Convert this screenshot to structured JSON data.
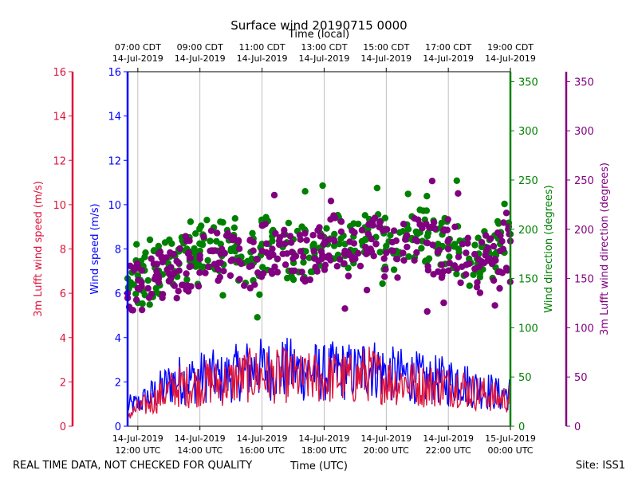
{
  "chart_data": {
    "type": "line+scatter",
    "title": "Surface wind 20190715 0000",
    "top_axis_label": "Time (local)",
    "xlabel": "Time (UTC)",
    "x_range_utc": [
      "2019-07-14 11:40",
      "2019-07-15 00:00"
    ],
    "top_ticks": [
      {
        "line1": "07:00 CDT",
        "line2": "14-Jul-2019"
      },
      {
        "line1": "09:00 CDT",
        "line2": "14-Jul-2019"
      },
      {
        "line1": "11:00 CDT",
        "line2": "14-Jul-2019"
      },
      {
        "line1": "13:00 CDT",
        "line2": "14-Jul-2019"
      },
      {
        "line1": "15:00 CDT",
        "line2": "14-Jul-2019"
      },
      {
        "line1": "17:00 CDT",
        "line2": "14-Jul-2019"
      },
      {
        "line1": "19:00 CDT",
        "line2": "14-Jul-2019"
      }
    ],
    "bottom_ticks": [
      {
        "line1": "14-Jul-2019",
        "line2": "12:00 UTC"
      },
      {
        "line1": "14-Jul-2019",
        "line2": "14:00 UTC"
      },
      {
        "line1": "14-Jul-2019",
        "line2": "16:00 UTC"
      },
      {
        "line1": "14-Jul-2019",
        "line2": "18:00 UTC"
      },
      {
        "line1": "14-Jul-2019",
        "line2": "20:00 UTC"
      },
      {
        "line1": "14-Jul-2019",
        "line2": "22:00 UTC"
      },
      {
        "line1": "15-Jul-2019",
        "line2": "00:00 UTC"
      }
    ],
    "axes": {
      "wind_speed": {
        "label": "Wind speed (m/s)",
        "color": "#0000ff",
        "ylim": [
          0,
          16
        ],
        "ticks": [
          0,
          2,
          4,
          6,
          8,
          10,
          12,
          14,
          16
        ]
      },
      "lufft_speed": {
        "label": "3m Lufft wind speed (m/s)",
        "color": "#dc143c",
        "ylim": [
          0,
          16
        ],
        "ticks": [
          0,
          2,
          4,
          6,
          8,
          10,
          12,
          14,
          16
        ]
      },
      "wind_direction": {
        "label": "Wind direction (degrees)",
        "color": "#008000",
        "ylim": [
          0,
          360
        ],
        "ticks": [
          0,
          50,
          100,
          150,
          200,
          250,
          300,
          350
        ]
      },
      "lufft_direction": {
        "label": "3m Lufft wind direction (degrees)",
        "color": "#800080",
        "ylim": [
          0,
          360
        ],
        "ticks": [
          0,
          50,
          100,
          150,
          200,
          250,
          300,
          350
        ]
      }
    },
    "series": [
      {
        "name": "Wind speed",
        "kind": "line",
        "color": "#0000ff",
        "axis": "wind_speed",
        "x_hours_utc": [
          11.67,
          12.0,
          12.33,
          12.67,
          13.0,
          13.33,
          13.67,
          14.0,
          14.33,
          14.67,
          15.0,
          15.33,
          15.67,
          16.0,
          16.33,
          16.67,
          17.0,
          17.33,
          17.67,
          18.0,
          18.33,
          18.67,
          19.0,
          19.33,
          19.67,
          20.0,
          20.33,
          20.67,
          21.0,
          21.33,
          21.67,
          22.0,
          22.33,
          22.67,
          23.0,
          23.33,
          23.67,
          24.0
        ],
        "values": [
          0.9,
          1.0,
          1.3,
          1.6,
          1.9,
          2.1,
          2.1,
          2.2,
          2.3,
          2.1,
          2.3,
          2.5,
          2.6,
          2.6,
          2.5,
          2.6,
          2.6,
          2.4,
          2.5,
          2.4,
          2.5,
          2.5,
          2.4,
          2.7,
          2.6,
          2.4,
          2.3,
          2.3,
          2.2,
          2.0,
          2.1,
          2.0,
          2.2,
          1.8,
          1.7,
          1.6,
          1.4,
          1.5
        ]
      },
      {
        "name": "3m Lufft wind speed",
        "kind": "line",
        "color": "#dc143c",
        "axis": "lufft_speed",
        "x_hours_utc": [
          11.67,
          12.0,
          12.33,
          12.67,
          13.0,
          13.33,
          13.67,
          14.0,
          14.33,
          14.67,
          15.0,
          15.33,
          15.67,
          16.0,
          16.33,
          16.67,
          17.0,
          17.33,
          17.67,
          18.0,
          18.33,
          18.67,
          19.0,
          19.33,
          19.67,
          20.0,
          20.33,
          20.67,
          21.0,
          21.33,
          21.67,
          22.0,
          22.33,
          22.67,
          23.0,
          23.33,
          23.67,
          24.0
        ],
        "values": [
          0.5,
          0.8,
          1.0,
          1.3,
          1.6,
          1.8,
          1.8,
          1.9,
          2.0,
          1.9,
          2.0,
          2.2,
          2.3,
          2.3,
          2.2,
          2.3,
          2.2,
          2.1,
          2.2,
          2.1,
          2.2,
          2.2,
          2.1,
          2.4,
          2.3,
          2.1,
          2.0,
          2.0,
          1.9,
          1.8,
          1.9,
          1.8,
          1.9,
          1.6,
          1.5,
          1.4,
          1.2,
          1.3
        ]
      },
      {
        "name": "Wind direction",
        "kind": "scatter",
        "color": "#008000",
        "axis": "wind_direction",
        "x_hours_utc": [
          11.67,
          12.0,
          12.33,
          12.67,
          13.0,
          13.33,
          13.67,
          14.0,
          14.33,
          14.67,
          15.0,
          15.33,
          15.67,
          16.0,
          16.33,
          16.67,
          17.0,
          17.33,
          17.67,
          18.0,
          18.33,
          18.67,
          19.0,
          19.33,
          19.67,
          20.0,
          20.33,
          20.67,
          21.0,
          21.33,
          21.67,
          22.0,
          22.33,
          22.67,
          23.0,
          23.33,
          23.67,
          24.0
        ],
        "values": [
          150,
          153,
          148,
          158,
          162,
          165,
          168,
          178,
          188,
          185,
          178,
          172,
          170,
          185,
          188,
          182,
          176,
          178,
          185,
          192,
          195,
          185,
          178,
          190,
          192,
          183,
          178,
          190,
          195,
          193,
          185,
          188,
          180,
          170,
          168,
          175,
          185,
          195
        ]
      },
      {
        "name": "3m Lufft wind direction",
        "kind": "scatter",
        "color": "#800080",
        "axis": "lufft_direction",
        "x_hours_utc": [
          11.67,
          12.0,
          12.33,
          12.67,
          13.0,
          13.33,
          13.67,
          14.0,
          14.33,
          14.67,
          15.0,
          15.33,
          15.67,
          16.0,
          16.33,
          16.67,
          17.0,
          17.33,
          17.67,
          18.0,
          18.33,
          18.67,
          19.0,
          19.33,
          19.67,
          20.0,
          20.33,
          20.67,
          21.0,
          21.33,
          21.67,
          22.0,
          22.33,
          22.67,
          23.0,
          23.33,
          23.67,
          24.0
        ],
        "values": [
          135,
          140,
          140,
          150,
          155,
          158,
          162,
          170,
          178,
          175,
          168,
          165,
          163,
          178,
          180,
          175,
          170,
          172,
          178,
          185,
          188,
          178,
          170,
          182,
          185,
          176,
          170,
          182,
          188,
          186,
          178,
          180,
          172,
          165,
          162,
          170,
          178,
          188
        ]
      }
    ],
    "footer_left": "REAL TIME DATA, NOT CHECKED FOR QUALITY",
    "footer_right": "Site: ISS1"
  }
}
